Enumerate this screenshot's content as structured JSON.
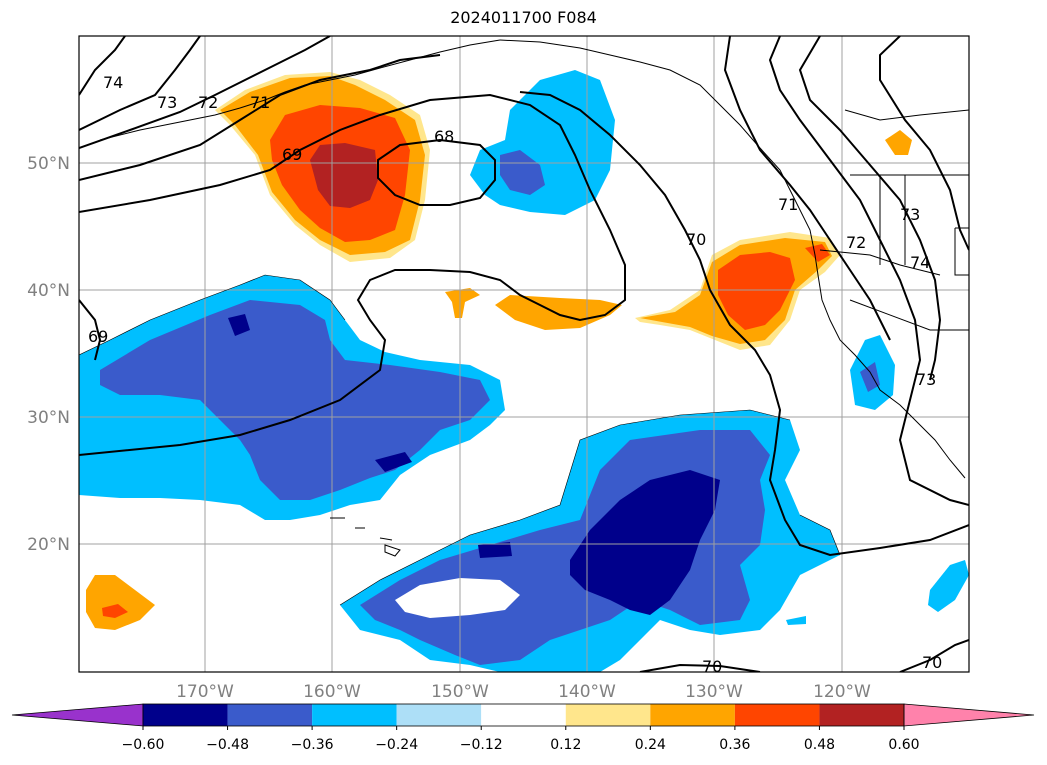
{
  "title": "2024011700 F084",
  "lat_labels": [
    "50°N",
    "40°N",
    "30°N",
    "20°N"
  ],
  "lon_labels": [
    "170°W",
    "160°W",
    "150°W",
    "140°W",
    "130°W",
    "120°W"
  ],
  "contour_labels": [
    "74",
    "73",
    "72",
    "71",
    "69",
    "68",
    "70",
    "69",
    "71",
    "72",
    "73",
    "74",
    "73",
    "70",
    "70"
  ],
  "colorbar": {
    "ticks": [
      "−0.60",
      "−0.48",
      "−0.36",
      "−0.24",
      "−0.12",
      "0.12",
      "0.24",
      "0.36",
      "0.48",
      "0.60"
    ],
    "colors": [
      "#9932CC",
      "#00008B",
      "#3A5BCB",
      "#00BFFF",
      "#ADDFF7",
      "#FFFFFF",
      "#FFE68C",
      "#FFA500",
      "#FF4500",
      "#B22222",
      "#FF82AB"
    ]
  },
  "fill_colors": {
    "neg_strong": "#00008B",
    "neg_mid": "#3A5BCB",
    "neg_weak": "#00BFFF",
    "neg_faint": "#ADDFF7",
    "pos_faint": "#FFE68C",
    "pos_weak": "#FFA500",
    "pos_mid": "#FF4500",
    "pos_strong": "#B22222"
  }
}
